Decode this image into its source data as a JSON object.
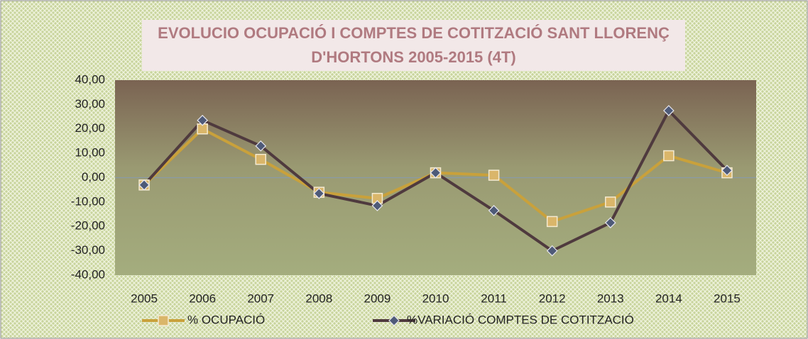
{
  "chart_data": {
    "type": "line",
    "title": "EVOLUCIO OCUPACIÓ I COMPTES DE COTITZACIÓ SANT LLORENÇ D'HORTONS 2005-2015 (4T)",
    "categories": [
      "2005",
      "2006",
      "2007",
      "2008",
      "2009",
      "2010",
      "2011",
      "2012",
      "2013",
      "2014",
      "2015"
    ],
    "series": [
      {
        "name": "% OCUPACIÓ",
        "color": "#c9a13b",
        "values": [
          -3,
          20,
          7.5,
          -6,
          -8.5,
          2,
          1,
          -18,
          -10,
          9,
          2
        ]
      },
      {
        "name": "%VARIACIÓ COMPTES DE COTITZACIÓ",
        "color": "#4f3a3e",
        "values": [
          -3,
          23.5,
          13,
          -6.5,
          -11.5,
          2,
          -13.5,
          -30,
          -18.5,
          27.5,
          3
        ]
      }
    ],
    "ylim": [
      -40,
      40
    ],
    "yticks": [
      {
        "value": -40,
        "label": "-40,00"
      },
      {
        "value": -30,
        "label": "-30,00"
      },
      {
        "value": -20,
        "label": "-20,00"
      },
      {
        "value": -10,
        "label": "-10,00"
      },
      {
        "value": 0,
        "label": "0,00"
      },
      {
        "value": 10,
        "label": "10,00"
      },
      {
        "value": 20,
        "label": "20,00"
      },
      {
        "value": 30,
        "label": "30,00"
      },
      {
        "value": 40,
        "label": "40,00"
      }
    ],
    "legend": "bottom"
  }
}
